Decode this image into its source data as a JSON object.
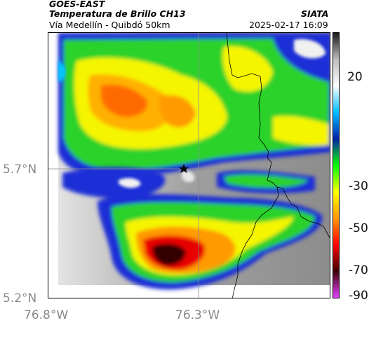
{
  "header": {
    "satellite": "GOES-EAST",
    "product": "Temperatura de Brillo CH13",
    "region": "Vía Medellín - Quibdó 50km",
    "agency": "SIATA",
    "timestamp": "2025-02-17 16:09"
  },
  "axes": {
    "y_ticks": [
      "5.7°N",
      "5.2°N"
    ],
    "x_ticks": [
      "76.8°W",
      "76.3°W"
    ]
  },
  "colorbar": {
    "tick_labels": [
      "20",
      "-30",
      "-50",
      "-70",
      "-90"
    ],
    "stops": [
      "#1a1a1a",
      "#bdbdbd",
      "#ffffff",
      "#00bfff",
      "#0022aa",
      "#00ff00",
      "#ffff00",
      "#ff9900",
      "#ff0000",
      "#400000",
      "#e040ff"
    ]
  },
  "map_colors": {
    "background": "#9a9a9a",
    "cold_blue": "#1c2fd6",
    "cyan": "#00c8ff",
    "green": "#2ad22a",
    "yellow": "#f5f500",
    "orange": "#ff9a00",
    "red": "#e80000",
    "dark_red": "#300000"
  },
  "marker_icon": "star-marker-icon"
}
